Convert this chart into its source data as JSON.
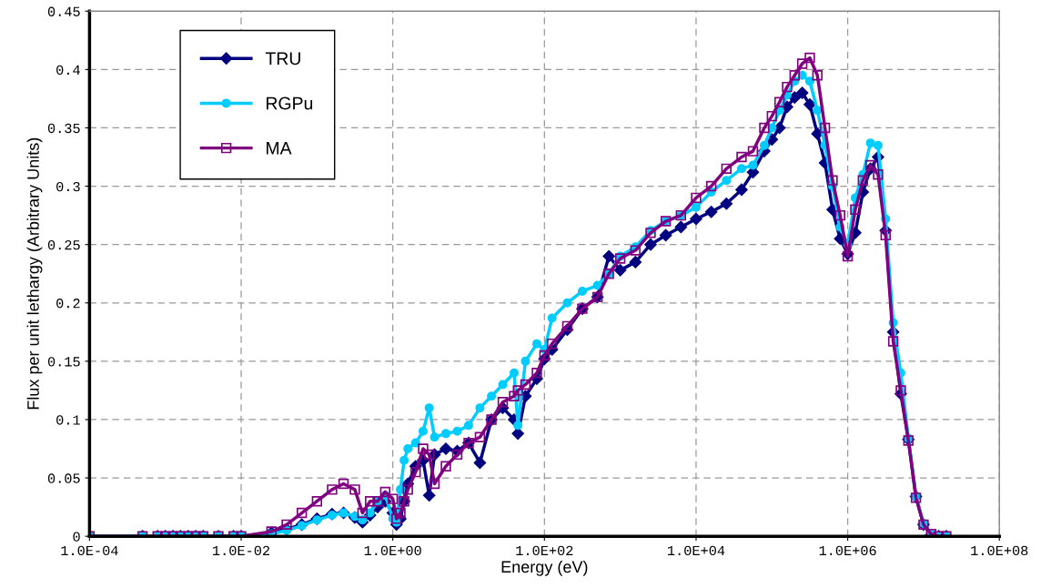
{
  "chart_data": {
    "type": "line",
    "xlabel": "Energy (eV)",
    "ylabel": "Flux per unit lethargy (Arbitrary Units)",
    "log": "x",
    "xlim": [
      0.0001,
      100000000
    ],
    "xticks": [
      {
        "value": 0.0001,
        "label": "1.0E-04"
      },
      {
        "value": 0.01,
        "label": "1.0E-02"
      },
      {
        "value": 1,
        "label": "1.0E+00"
      },
      {
        "value": 100,
        "label": "1.0E+02"
      },
      {
        "value": 10000,
        "label": "1.0E+04"
      },
      {
        "value": 1000000,
        "label": "1.0E+06"
      },
      {
        "value": 100000000,
        "label": "1.0E+08"
      }
    ],
    "ylim": [
      0,
      0.45
    ],
    "yticks": [
      0,
      0.05,
      0.1,
      0.15,
      0.2,
      0.25,
      0.3,
      0.35,
      0.4,
      0.45
    ],
    "grid": true,
    "legend": "top left",
    "line_style": "solid",
    "x": [
      0.0001,
      0.0005,
      0.00079,
      0.001,
      0.00126,
      0.00158,
      0.002,
      0.00251,
      0.00316,
      0.00501,
      0.00794,
      0.01,
      0.0251,
      0.0398,
      0.0631,
      0.1,
      0.158,
      0.224,
      0.316,
      0.398,
      0.501,
      0.631,
      0.794,
      1,
      1.12,
      1.26,
      1.41,
      1.58,
      2,
      2.51,
      3.02,
      3.55,
      5.01,
      7.08,
      10,
      14.1,
      20,
      28.2,
      39.8,
      44.7,
      56.2,
      79.4,
      100,
      126,
      200,
      316,
      501,
      708,
      1000,
      1585,
      2512,
      3981,
      6310,
      10000,
      15850,
      25120,
      39810,
      56230,
      79430,
      100000,
      125900,
      158500,
      199500,
      251200,
      316200,
      398100,
      501200,
      631000,
      794300,
      1000000,
      1259000,
      1585000,
      1995000,
      2512000,
      3162000,
      3981000,
      5012000,
      6310000,
      7943000,
      10000000,
      12590000,
      15850000,
      19950000
    ],
    "series": [
      {
        "name": "TRU",
        "color": "#000080",
        "marker": "diamond",
        "values": [
          0,
          0,
          0,
          0,
          0,
          0,
          0,
          0,
          0,
          0,
          0,
          0,
          0.003,
          0.006,
          0.01,
          0.015,
          0.019,
          0.02,
          0.016,
          0.012,
          0.018,
          0.025,
          0.03,
          0.02,
          0.01,
          0.015,
          0.03,
          0.045,
          0.06,
          0.065,
          0.035,
          0.07,
          0.075,
          0.073,
          0.08,
          0.063,
          0.1,
          0.11,
          0.1,
          0.088,
          0.12,
          0.135,
          0.152,
          0.16,
          0.177,
          0.195,
          0.205,
          0.24,
          0.228,
          0.235,
          0.25,
          0.258,
          0.265,
          0.272,
          0.278,
          0.285,
          0.297,
          0.312,
          0.33,
          0.34,
          0.35,
          0.368,
          0.376,
          0.38,
          0.37,
          0.345,
          0.32,
          0.28,
          0.255,
          0.242,
          0.26,
          0.295,
          0.315,
          0.325,
          0.262,
          0.175,
          0.122,
          0.083,
          0.034,
          0.01,
          0.001,
          0,
          0
        ]
      },
      {
        "name": "RGPu",
        "color": "#00ccff",
        "marker": "circle",
        "values": [
          0,
          0,
          0,
          0,
          0,
          0,
          0,
          0,
          0,
          0,
          0,
          0,
          0.002,
          0.005,
          0.009,
          0.014,
          0.018,
          0.02,
          0.017,
          0.014,
          0.02,
          0.03,
          0.035,
          0.015,
          0.012,
          0.04,
          0.065,
          0.075,
          0.08,
          0.09,
          0.11,
          0.085,
          0.088,
          0.09,
          0.095,
          0.11,
          0.12,
          0.13,
          0.14,
          0.095,
          0.15,
          0.165,
          0.16,
          0.187,
          0.2,
          0.21,
          0.215,
          0.225,
          0.24,
          0.248,
          0.262,
          0.27,
          0.275,
          0.282,
          0.295,
          0.305,
          0.315,
          0.318,
          0.335,
          0.35,
          0.365,
          0.378,
          0.39,
          0.395,
          0.39,
          0.365,
          0.335,
          0.3,
          0.265,
          0.25,
          0.29,
          0.31,
          0.337,
          0.335,
          0.272,
          0.183,
          0.14,
          0.084,
          0.034,
          0.011,
          0.002,
          0,
          0
        ]
      },
      {
        "name": "MA",
        "color": "#800080",
        "marker": "square",
        "values": [
          0,
          0,
          0,
          0,
          0,
          0,
          0,
          0,
          0,
          0,
          0,
          0,
          0.004,
          0.01,
          0.02,
          0.03,
          0.04,
          0.045,
          0.04,
          0.02,
          0.03,
          0.03,
          0.038,
          0.032,
          0.015,
          0.02,
          0.03,
          0.04,
          0.055,
          0.075,
          0.07,
          0.045,
          0.06,
          0.07,
          0.08,
          0.085,
          0.1,
          0.115,
          0.12,
          0.125,
          0.13,
          0.14,
          0.155,
          0.165,
          0.18,
          0.195,
          0.205,
          0.225,
          0.238,
          0.245,
          0.26,
          0.27,
          0.275,
          0.29,
          0.3,
          0.315,
          0.325,
          0.33,
          0.35,
          0.36,
          0.372,
          0.385,
          0.395,
          0.405,
          0.41,
          0.395,
          0.35,
          0.305,
          0.275,
          0.24,
          0.28,
          0.305,
          0.318,
          0.31,
          0.258,
          0.167,
          0.125,
          0.082,
          0.033,
          0.01,
          0.002,
          0,
          0
        ]
      }
    ]
  }
}
